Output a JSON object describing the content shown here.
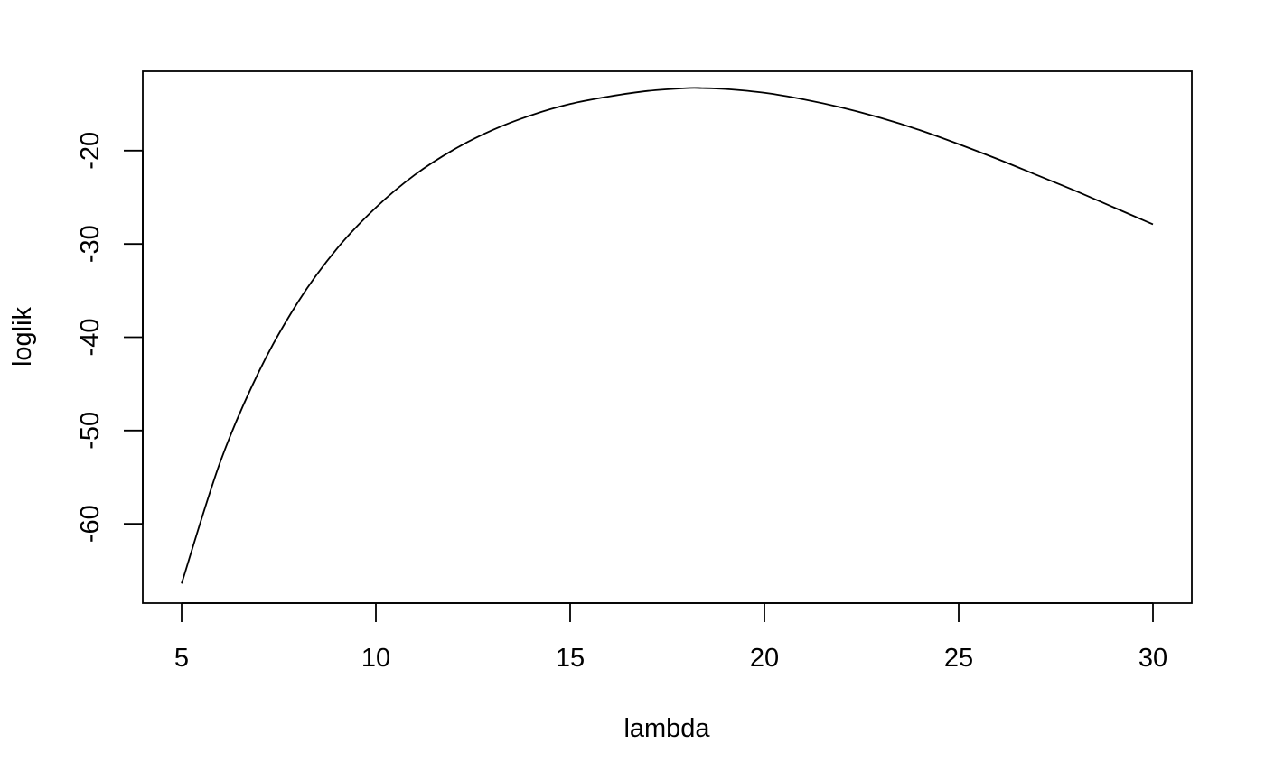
{
  "chart_data": {
    "type": "line",
    "title": "",
    "xlabel": "lambda",
    "ylabel": "loglik",
    "xlim": [
      4,
      31
    ],
    "ylim": [
      -68.5,
      -11.5
    ],
    "grid": false,
    "x_ticks": [
      5,
      10,
      15,
      20,
      25,
      30
    ],
    "x_tick_labels": [
      "5",
      "10",
      "15",
      "20",
      "25",
      "30"
    ],
    "y_ticks": [
      -60,
      -50,
      -40,
      -30,
      -20
    ],
    "y_tick_labels": [
      "-60",
      "-50",
      "-40",
      "-30",
      "-20"
    ],
    "series": [
      {
        "color": "#000000",
        "x": [
          5,
          6,
          7,
          8,
          9,
          10,
          11,
          12,
          13,
          14,
          15,
          16,
          17,
          18,
          18.4,
          19,
          20,
          21,
          22,
          23,
          24,
          25,
          26,
          27,
          28,
          29,
          30
        ],
        "y": [
          -66.4,
          -53.3,
          -43.6,
          -36.2,
          -30.5,
          -26.1,
          -22.6,
          -19.9,
          -17.8,
          -16.2,
          -15.0,
          -14.2,
          -13.6,
          -13.3,
          -13.3,
          -13.4,
          -13.8,
          -14.5,
          -15.4,
          -16.5,
          -17.8,
          -19.3,
          -20.9,
          -22.6,
          -24.3,
          -26.1,
          -27.9
        ]
      }
    ]
  }
}
